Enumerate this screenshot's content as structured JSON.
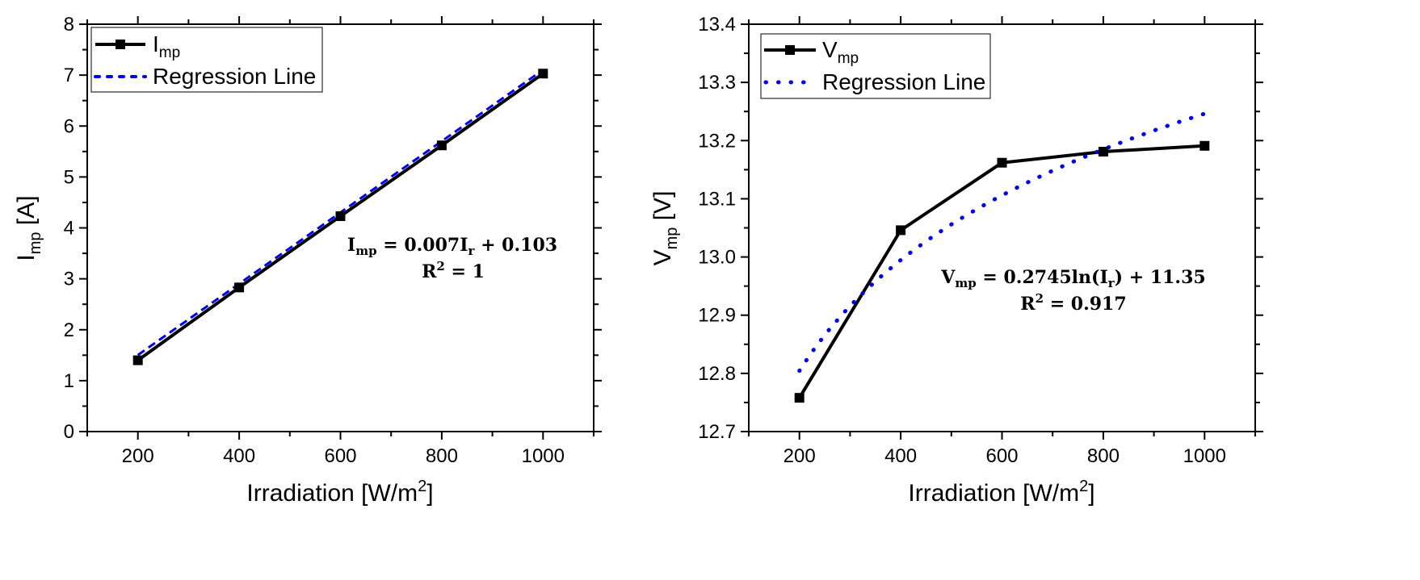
{
  "chart_data": [
    {
      "type": "line",
      "x": [
        200,
        400,
        600,
        800,
        1000
      ],
      "series": [
        {
          "name": "I",
          "name_sub": "mp",
          "values": [
            1.4,
            2.83,
            4.23,
            5.62,
            7.03
          ],
          "color": "#000000",
          "style": "solid-square-markers"
        },
        {
          "name": "Regression Line",
          "values": [
            1.503,
            2.903,
            4.303,
            5.703,
            7.103
          ],
          "color": "#0000ee",
          "style": "dashed"
        }
      ],
      "xlabel": "Irradiation [W/m",
      "xlabel_sup": "2",
      "xlabel_end": "]",
      "ylabel": "I",
      "ylabel_sub": "mp",
      "ylabel_end": " [A]",
      "xlim": [
        100,
        1100
      ],
      "ylim": [
        0,
        8
      ],
      "xticks": [
        "200",
        "400",
        "600",
        "800",
        "1000"
      ],
      "yticks": [
        "0",
        "1",
        "2",
        "3",
        "4",
        "5",
        "6",
        "7",
        "8"
      ],
      "yticks_values": [
        0,
        1,
        2,
        3,
        4,
        5,
        6,
        7,
        8
      ],
      "legend": "top-left",
      "equation": {
        "lhs": "I",
        "lhs_sub": "mp",
        "rhs_a": " = 0.007I",
        "rhs_sub": "r",
        "rhs_b": " + 0.103",
        "r2": "R",
        "r2_sup": "2",
        "r2_rhs": " = 1"
      },
      "regression": {
        "slope": 0.007,
        "intercept": 0.103
      }
    },
    {
      "type": "line",
      "x": [
        200,
        400,
        600,
        800,
        1000
      ],
      "series": [
        {
          "name": "V",
          "name_sub": "mp",
          "values": [
            12.758,
            13.046,
            13.162,
            13.181,
            13.191
          ],
          "color": "#000000",
          "style": "solid-square-markers"
        },
        {
          "name": "Regression Line",
          "values": [
            12.805,
            12.995,
            13.107,
            13.186,
            13.247
          ],
          "color": "#0000ee",
          "style": "dotted"
        }
      ],
      "xlabel": "Irradiation [W/m",
      "xlabel_sup": "2",
      "xlabel_end": "]",
      "ylabel": "V",
      "ylabel_sub": "mp",
      "ylabel_end": " [V]",
      "xlim": [
        100,
        1100
      ],
      "ylim": [
        12.7,
        13.4
      ],
      "xticks": [
        "200",
        "400",
        "600",
        "800",
        "1000"
      ],
      "yticks": [
        "12.7",
        "12.8",
        "12.9",
        "13.0",
        "13.1",
        "13.2",
        "13.3",
        "13.4"
      ],
      "yticks_values": [
        12.7,
        12.8,
        12.9,
        13.0,
        13.1,
        13.2,
        13.3,
        13.4
      ],
      "legend": "top-left",
      "equation": {
        "lhs": "V",
        "lhs_sub": "mp",
        "rhs_a": " = 0.2745ln(I",
        "rhs_sub": "r",
        "rhs_b": ") + 11.35",
        "r2": "R",
        "r2_sup": "2",
        "r2_rhs": " = 0.917"
      },
      "regression": {
        "a": 0.2745,
        "b": 11.35,
        "form": "log"
      }
    }
  ]
}
